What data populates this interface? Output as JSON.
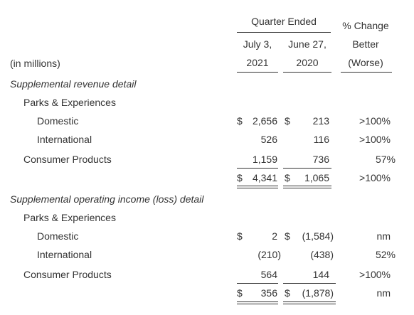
{
  "header": {
    "quarter_ended": "Quarter Ended",
    "col1_line1": "July 3,",
    "col1_line2": "2021",
    "col2_line1": "June 27,",
    "col2_line2": "2020",
    "pct_line1": "% Change",
    "pct_line2": "Better",
    "pct_line3": "(Worse)",
    "units": "(in millions)"
  },
  "revenue": {
    "section_title": "Supplemental revenue detail",
    "parks_label": "Parks & Experiences",
    "domestic": {
      "label": "Domestic",
      "cur_sym": "$",
      "cur": "2,656",
      "prev_sym": "$",
      "prev": "213",
      "pct": ">100%"
    },
    "international": {
      "label": "International",
      "cur": "526",
      "prev": "116",
      "pct": ">100%"
    },
    "consumer": {
      "label": "Consumer Products",
      "cur": "1,159",
      "prev": "736",
      "pct": "57%"
    },
    "total": {
      "cur_sym": "$",
      "cur": "4,341",
      "prev_sym": "$",
      "prev": "1,065",
      "pct": ">100%"
    }
  },
  "operating": {
    "section_title": "Supplemental operating income (loss) detail",
    "parks_label": "Parks & Experiences",
    "domestic": {
      "label": "Domestic",
      "cur_sym": "$",
      "cur": "2",
      "prev_sym": "$",
      "prev": "(1,584)",
      "pct": "nm"
    },
    "international": {
      "label": "International",
      "cur": "(210)",
      "prev": "(438)",
      "pct": "52%"
    },
    "consumer": {
      "label": "Consumer Products",
      "cur": "564",
      "prev": "144",
      "pct": ">100%"
    },
    "total": {
      "cur_sym": "$",
      "cur": "356",
      "prev_sym": "$",
      "prev": "(1,878)",
      "pct": "nm"
    }
  }
}
